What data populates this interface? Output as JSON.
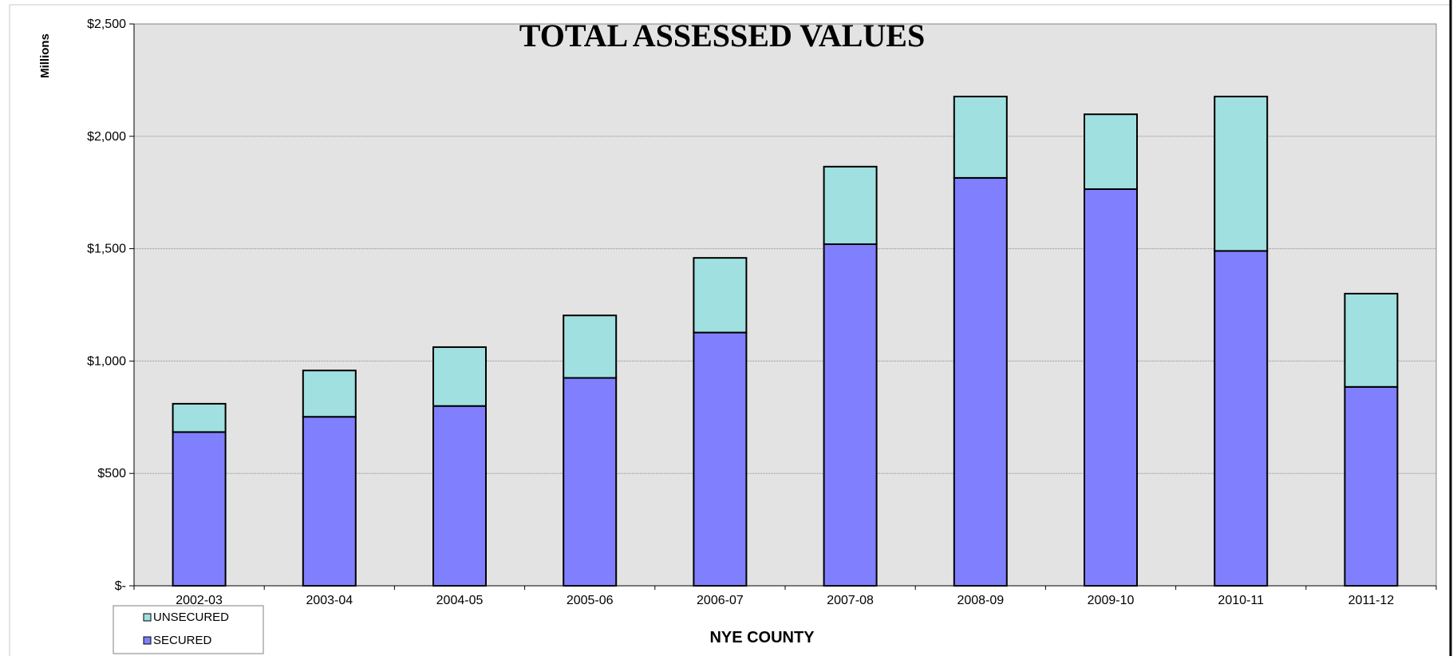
{
  "chart_data": {
    "type": "bar",
    "stacked": true,
    "title": "TOTAL ASSESSED VALUES",
    "xlabel": "NYE COUNTY",
    "ylabel": "Millions",
    "categories": [
      "2002-03",
      "2003-04",
      "2004-05",
      "2005-06",
      "2006-07",
      "2007-08",
      "2008-09",
      "2009-10",
      "2010-11",
      "2011-12"
    ],
    "series": [
      {
        "name": "SECURED",
        "color": "#8080ff",
        "values": [
          684,
          752,
          800,
          925,
          1127,
          1520,
          1815,
          1765,
          1490,
          885
        ]
      },
      {
        "name": "UNSECURED",
        "color": "#a0e0e0",
        "values": [
          126,
          206,
          262,
          278,
          332,
          345,
          362,
          333,
          687,
          415
        ]
      }
    ],
    "ylim": [
      0,
      2500
    ],
    "yticks": [
      0,
      500,
      1000,
      1500,
      2000,
      2500
    ],
    "ytick_labels": [
      "$-",
      "$500",
      "$1,000",
      "$1,500",
      "$2,000",
      "$2,500"
    ],
    "grid": true,
    "legend": {
      "placement": "bottom-left",
      "order": [
        "UNSECURED",
        "SECURED"
      ]
    },
    "plot_background": "#e3e3e3"
  }
}
